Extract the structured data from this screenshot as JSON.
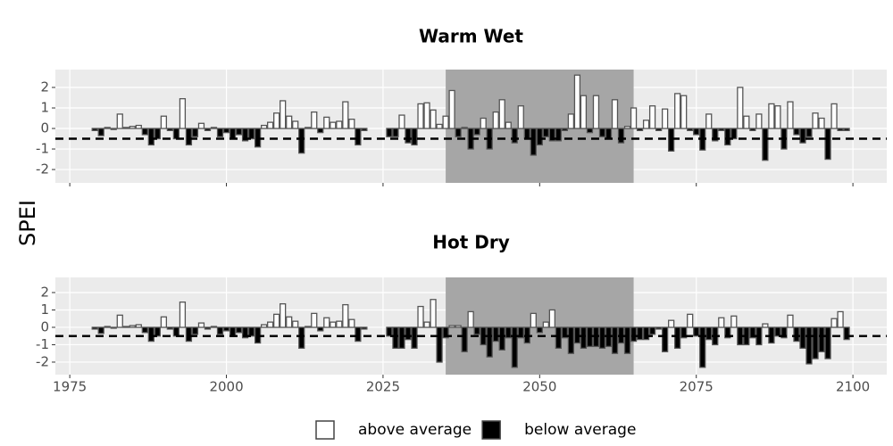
{
  "y_label": "SPEI",
  "legend": [
    {
      "label": "above average",
      "color": "#ffffff"
    },
    {
      "label": "below average",
      "color": "#000000"
    }
  ],
  "chart_data": [
    {
      "type": "bar",
      "title": "Warm Wet",
      "x": [
        1979,
        1980,
        1981,
        1982,
        1983,
        1984,
        1985,
        1986,
        1987,
        1988,
        1989,
        1990,
        1991,
        1992,
        1993,
        1994,
        1995,
        1996,
        1997,
        1998,
        1999,
        2000,
        2001,
        2002,
        2003,
        2004,
        2005,
        2006,
        2007,
        2008,
        2009,
        2010,
        2011,
        2012,
        2013,
        2014,
        2015,
        2016,
        2017,
        2018,
        2019,
        2020,
        2021,
        2022,
        2026,
        2027,
        2028,
        2029,
        2030,
        2031,
        2032,
        2033,
        2034,
        2035,
        2036,
        2037,
        2038,
        2039,
        2040,
        2041,
        2042,
        2043,
        2044,
        2045,
        2046,
        2047,
        2048,
        2049,
        2050,
        2051,
        2052,
        2053,
        2054,
        2055,
        2056,
        2057,
        2058,
        2059,
        2060,
        2061,
        2062,
        2063,
        2064,
        2065,
        2066,
        2067,
        2068,
        2069,
        2070,
        2071,
        2072,
        2073,
        2074,
        2075,
        2076,
        2077,
        2078,
        2079,
        2080,
        2081,
        2082,
        2083,
        2084,
        2085,
        2086,
        2087,
        2088,
        2089,
        2090,
        2091,
        2092,
        2093,
        2094,
        2095,
        2096,
        2097,
        2098,
        2099
      ],
      "values": [
        -0.1,
        -0.35,
        0.05,
        -0.05,
        0.7,
        0.05,
        0.1,
        0.15,
        -0.3,
        -0.8,
        -0.5,
        0.6,
        -0.1,
        -0.5,
        1.45,
        -0.8,
        -0.4,
        0.25,
        -0.1,
        0.05,
        -0.4,
        -0.2,
        -0.5,
        -0.3,
        -0.6,
        -0.5,
        -0.9,
        0.15,
        0.3,
        0.75,
        1.35,
        0.6,
        0.35,
        -1.2,
        0.05,
        0.8,
        -0.2,
        0.55,
        0.3,
        0.35,
        1.3,
        0.45,
        -0.8,
        -0.1,
        -0.4,
        -0.4,
        0.65,
        -0.7,
        -0.8,
        1.2,
        1.25,
        0.9,
        0.2,
        0.6,
        1.85,
        -0.4,
        0.05,
        -1.0,
        -0.3,
        0.5,
        -1.0,
        0.8,
        1.4,
        0.3,
        -0.7,
        1.1,
        -0.5,
        -1.3,
        -0.8,
        -0.4,
        -0.6,
        -0.6,
        -0.1,
        0.7,
        2.6,
        1.6,
        -0.2,
        1.6,
        -0.4,
        -0.5,
        1.4,
        -0.7,
        0.1,
        1.0,
        -0.1,
        0.4,
        1.1,
        -0.1,
        0.95,
        -1.1,
        1.7,
        1.6,
        -0.1,
        -0.3,
        -1.05,
        0.7,
        -0.6,
        -0.1,
        -0.8,
        -0.5,
        2.0,
        0.6,
        -0.1,
        0.7,
        -1.55,
        1.2,
        1.1,
        -1.0,
        1.3,
        -0.3,
        -0.7,
        -0.4,
        0.75,
        0.5,
        -1.5,
        1.2,
        -0.1,
        -0.1
      ],
      "xlim": [
        1972.7,
        2105.4
      ],
      "ylim": [
        -2.65,
        2.87
      ],
      "xticks": [
        1975,
        2000,
        2025,
        2050,
        2075,
        2100
      ],
      "x_tick_labels": false,
      "yticks": [
        -2,
        -1,
        0,
        1,
        2
      ],
      "highlight": [
        2035,
        2065
      ],
      "highlight_color": "#a6a6a6",
      "hline": -0.5,
      "grid": true
    },
    {
      "type": "bar",
      "title": "Hot Dry",
      "x": [
        1979,
        1980,
        1981,
        1982,
        1983,
        1984,
        1985,
        1986,
        1987,
        1988,
        1989,
        1990,
        1991,
        1992,
        1993,
        1994,
        1995,
        1996,
        1997,
        1998,
        1999,
        2000,
        2001,
        2002,
        2003,
        2004,
        2005,
        2006,
        2007,
        2008,
        2009,
        2010,
        2011,
        2012,
        2013,
        2014,
        2015,
        2016,
        2017,
        2018,
        2019,
        2020,
        2021,
        2022,
        2026,
        2027,
        2028,
        2029,
        2030,
        2031,
        2032,
        2033,
        2034,
        2035,
        2036,
        2037,
        2038,
        2039,
        2040,
        2041,
        2042,
        2043,
        2044,
        2045,
        2046,
        2047,
        2048,
        2049,
        2050,
        2051,
        2052,
        2053,
        2054,
        2055,
        2056,
        2057,
        2058,
        2059,
        2060,
        2061,
        2062,
        2063,
        2064,
        2065,
        2066,
        2067,
        2068,
        2069,
        2070,
        2071,
        2072,
        2073,
        2074,
        2075,
        2076,
        2077,
        2078,
        2079,
        2080,
        2081,
        2082,
        2083,
        2084,
        2085,
        2086,
        2087,
        2088,
        2089,
        2090,
        2091,
        2092,
        2093,
        2094,
        2095,
        2096,
        2097,
        2098,
        2099
      ],
      "values": [
        -0.1,
        -0.35,
        0.05,
        -0.05,
        0.7,
        0.05,
        0.1,
        0.15,
        -0.3,
        -0.8,
        -0.5,
        0.6,
        -0.1,
        -0.5,
        1.45,
        -0.8,
        -0.4,
        0.25,
        -0.1,
        0.05,
        -0.4,
        -0.2,
        -0.5,
        -0.3,
        -0.6,
        -0.5,
        -0.9,
        0.15,
        0.3,
        0.75,
        1.35,
        0.6,
        0.35,
        -1.2,
        0.05,
        0.8,
        -0.2,
        0.55,
        0.3,
        0.35,
        1.3,
        0.45,
        -0.8,
        -0.1,
        -0.5,
        -1.2,
        -1.2,
        -0.7,
        -1.2,
        1.2,
        0.3,
        1.6,
        -2.0,
        -0.6,
        0.1,
        0.1,
        -1.4,
        0.9,
        -0.4,
        -1.0,
        -1.7,
        -0.8,
        -1.3,
        -0.6,
        -2.3,
        -0.6,
        -0.9,
        0.8,
        -0.3,
        0.3,
        1.0,
        -1.2,
        -0.6,
        -1.5,
        -0.9,
        -1.2,
        -1.1,
        -1.1,
        -1.2,
        -1.1,
        -1.5,
        -0.9,
        -1.5,
        -0.8,
        -0.7,
        -0.7,
        -0.4,
        -0.1,
        -1.4,
        0.4,
        -1.2,
        -0.6,
        0.75,
        -0.5,
        -2.3,
        -0.7,
        -1.0,
        0.55,
        -0.6,
        0.65,
        -1.0,
        -1.0,
        -0.6,
        -1.0,
        0.2,
        -0.9,
        -0.5,
        -0.6,
        0.7,
        -0.8,
        -1.2,
        -2.1,
        -1.8,
        -1.4,
        -1.8,
        0.5,
        0.9,
        -0.7
      ],
      "xlim": [
        1972.7,
        2105.4
      ],
      "ylim": [
        -2.72,
        2.87
      ],
      "xticks": [
        1975,
        2000,
        2025,
        2050,
        2075,
        2100
      ],
      "x_tick_labels": true,
      "yticks": [
        -2,
        -1,
        0,
        1,
        2
      ],
      "highlight": [
        2035,
        2065
      ],
      "highlight_color": "#a6a6a6",
      "hline": -0.5,
      "grid": true
    }
  ]
}
